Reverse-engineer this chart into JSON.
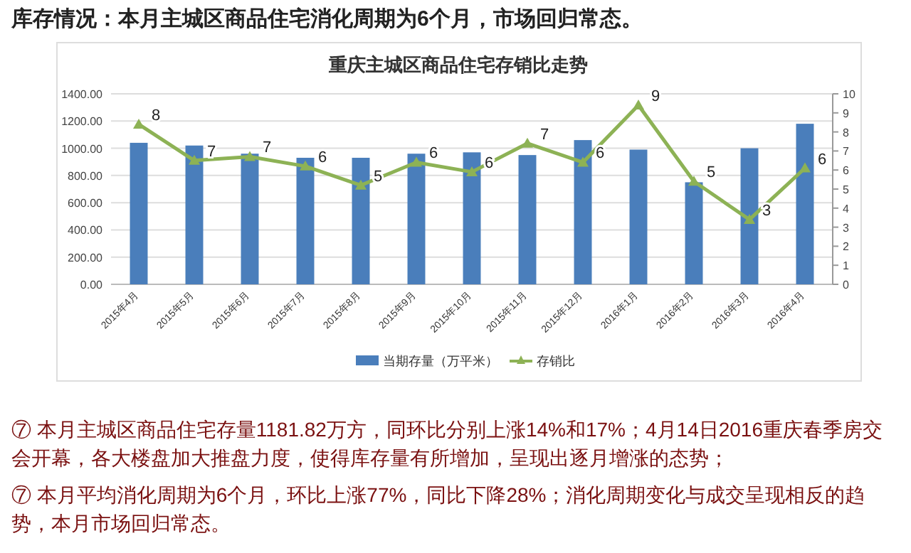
{
  "chart_data": {
    "type": "bar",
    "title": "库存情况：本月主城区商品住宅消化周期为6个月，市场回归常态。",
    "subtitle": "重庆主城区商品住宅存销比走势",
    "categories": [
      "2015年4月",
      "2015年5月",
      "2015年6月",
      "2015年7月",
      "2015年8月",
      "2015年9月",
      "2015年10月",
      "2015年11月",
      "2015年12月",
      "2016年1月",
      "2016年2月",
      "2016年3月",
      "2016年4月"
    ],
    "series": [
      {
        "name": "当期存量（万平米）",
        "color": "#4a7ebb",
        "values": [
          1040,
          1020,
          960,
          930,
          930,
          960,
          970,
          950,
          1060,
          990,
          750,
          1000,
          1180
        ]
      },
      {
        "name": "存销比",
        "type": "line",
        "axis": "y2",
        "color": "#8db255",
        "marker": "triangle",
        "values": [
          8.4,
          6.5,
          6.7,
          6.2,
          5.2,
          6.4,
          5.9,
          7.4,
          6.4,
          9.4,
          5.4,
          3.4,
          6.1
        ],
        "value_labels": [
          "8",
          "7",
          "7",
          "6",
          "5",
          "6",
          "6",
          "7",
          "6",
          "9",
          "5",
          "3",
          "6"
        ]
      }
    ],
    "ylim": [
      0,
      1400
    ],
    "yticks": [
      {
        "value": 0,
        "label": "0.00"
      },
      {
        "value": 200,
        "label": "200.00"
      },
      {
        "value": 400,
        "label": "400.00"
      },
      {
        "value": 600,
        "label": "600.00"
      },
      {
        "value": 800,
        "label": "800.00"
      },
      {
        "value": 1000,
        "label": "1000.00"
      },
      {
        "value": 1200,
        "label": "1200.00"
      },
      {
        "value": 1400,
        "label": "1400.00"
      }
    ],
    "y2lim": [
      0,
      10
    ],
    "y2ticks": [
      0,
      1,
      2,
      3,
      4,
      5,
      6,
      7,
      8,
      9,
      10
    ],
    "grid": "y",
    "legend": "bottom",
    "annotations": [
      "⑦ 本月主城区商品住宅存量1181.82万方，同环比分别上涨14%和17%；4月14日2016重庆春季房交会开幕，各大楼盘加大推盘力度，使得库存量有所增加，呈现出逐月增涨的态势；",
      "⑦ 本月平均消化周期为6个月，环比上涨77%，同比下降28%；消化周期变化与成交呈现相反的趋势，本月市场回归常态。"
    ]
  }
}
